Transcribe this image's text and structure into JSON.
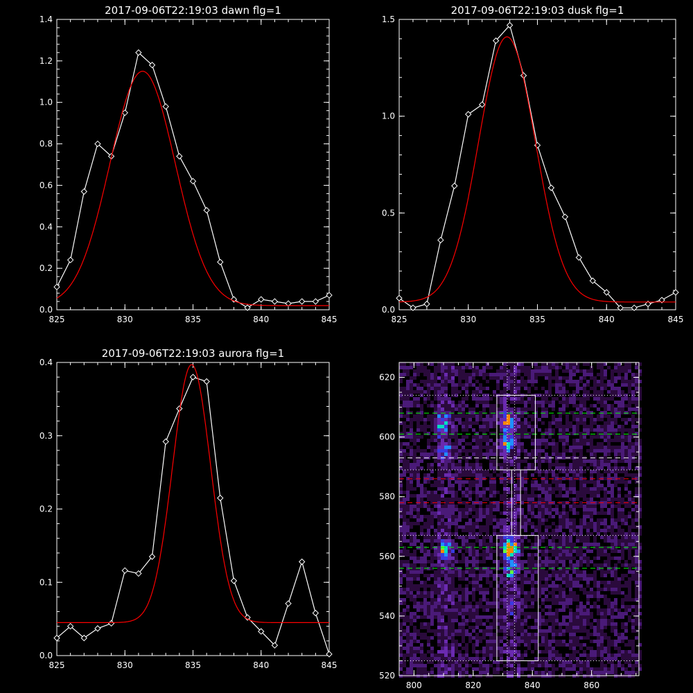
{
  "chart_data": [
    {
      "type": "line",
      "title": "2017-09-06T22:19:03 dawn flg=1",
      "xlim": [
        825,
        845
      ],
      "ylim": [
        0,
        1.4
      ],
      "xticks": [
        "825",
        "830",
        "835",
        "840",
        "845"
      ],
      "yticks": [
        "0.0",
        "0.2",
        "0.4",
        "0.6",
        "0.8",
        "1.0",
        "1.2",
        "1.4"
      ],
      "series": [
        {
          "color": "#ffffff",
          "marker": "diamond",
          "x": [
            825,
            826,
            827,
            828,
            829,
            830,
            831,
            832,
            833,
            834,
            835,
            836,
            837,
            838,
            839,
            840,
            841,
            842,
            843,
            844,
            845
          ],
          "y": [
            0.11,
            0.24,
            0.57,
            0.8,
            0.74,
            0.95,
            1.24,
            1.18,
            0.98,
            0.74,
            0.62,
            0.48,
            0.23,
            0.05,
            0.01,
            0.05,
            0.04,
            0.03,
            0.04,
            0.04,
            0.07
          ]
        },
        {
          "color": "#ff0000",
          "marker": "none",
          "fit": {
            "amplitude": 1.13,
            "center": 831.3,
            "sigma": 2.4,
            "offset": 0.02
          }
        }
      ]
    },
    {
      "type": "line",
      "title": "2017-09-06T22:19:03 dusk flg=1",
      "xlim": [
        825,
        845
      ],
      "ylim": [
        0,
        1.5
      ],
      "xticks": [
        "825",
        "830",
        "835",
        "840",
        "845"
      ],
      "yticks": [
        "0.0",
        "0.5",
        "1.0",
        "1.5"
      ],
      "series": [
        {
          "color": "#ffffff",
          "marker": "diamond",
          "x": [
            825,
            826,
            827,
            828,
            829,
            830,
            831,
            832,
            833,
            834,
            835,
            836,
            837,
            838,
            839,
            840,
            841,
            842,
            843,
            844,
            845
          ],
          "y": [
            0.06,
            0.01,
            0.03,
            0.36,
            0.64,
            1.01,
            1.06,
            1.39,
            1.47,
            1.21,
            0.85,
            0.63,
            0.48,
            0.27,
            0.15,
            0.09,
            0.01,
            0.01,
            0.03,
            0.05,
            0.09
          ]
        },
        {
          "color": "#ff0000",
          "marker": "none",
          "fit": {
            "amplitude": 1.37,
            "center": 832.8,
            "sigma": 2.05,
            "offset": 0.04
          }
        }
      ]
    },
    {
      "type": "line",
      "title": "2017-09-06T22:19:03 aurora flg=1",
      "xlim": [
        825,
        845
      ],
      "ylim": [
        0,
        0.4
      ],
      "xticks": [
        "825",
        "830",
        "835",
        "840",
        "845"
      ],
      "yticks": [
        "0.0",
        "0.1",
        "0.2",
        "0.3",
        "0.4"
      ],
      "series": [
        {
          "color": "#ffffff",
          "marker": "diamond",
          "x": [
            825,
            826,
            827,
            828,
            829,
            830,
            831,
            832,
            833,
            834,
            835,
            836,
            837,
            838,
            839,
            840,
            841,
            842,
            843,
            844,
            845
          ],
          "y": [
            0.024,
            0.04,
            0.024,
            0.037,
            0.044,
            0.116,
            0.112,
            0.135,
            0.292,
            0.337,
            0.38,
            0.374,
            0.215,
            0.102,
            0.052,
            0.033,
            0.014,
            0.071,
            0.128,
            0.058,
            0.002
          ]
        },
        {
          "color": "#ff0000",
          "marker": "none",
          "fit": {
            "amplitude": 0.352,
            "center": 834.9,
            "sigma": 1.4,
            "offset": 0.045
          }
        }
      ]
    },
    {
      "type": "heatmap",
      "title": "",
      "xlim": [
        795,
        876
      ],
      "ylim": [
        520,
        625
      ],
      "xticks": [
        "800",
        "820",
        "840",
        "860"
      ],
      "yticks": [
        "520",
        "540",
        "560",
        "580",
        "600",
        "620"
      ],
      "blobs": [
        {
          "x": 809,
          "y": 605,
          "intensity": 0.55
        },
        {
          "x": 810,
          "y": 596,
          "intensity": 0.35
        },
        {
          "x": 831,
          "y": 606,
          "intensity": 0.7
        },
        {
          "x": 831,
          "y": 598,
          "intensity": 0.5
        },
        {
          "x": 810,
          "y": 563,
          "intensity": 0.6
        },
        {
          "x": 832,
          "y": 563,
          "intensity": 1.0
        },
        {
          "x": 832,
          "y": 555,
          "intensity": 0.4
        },
        {
          "x": 832,
          "y": 545,
          "intensity": 0.25
        },
        {
          "x": 850,
          "y": 563,
          "intensity": 0.2
        }
      ],
      "boxes": [
        {
          "x": [
            828,
            841
          ],
          "y": [
            589,
            614
          ]
        },
        {
          "x": [
            833,
            836
          ],
          "y": [
            567,
            589
          ]
        },
        {
          "x": [
            828,
            842
          ],
          "y": [
            525,
            567
          ]
        }
      ],
      "hlines": [
        {
          "y": 614,
          "color": "#ffffff",
          "style": "dotted"
        },
        {
          "y": 608,
          "color": "#00ff00",
          "style": "dashed"
        },
        {
          "y": 601,
          "color": "#00ff00",
          "style": "dashed"
        },
        {
          "y": 593,
          "color": "#ffffff",
          "style": "dashed"
        },
        {
          "y": 589,
          "color": "#ffffff",
          "style": "dotted"
        },
        {
          "y": 586,
          "color": "#ff0000",
          "style": "dashed"
        },
        {
          "y": 578,
          "color": "#ff0000",
          "style": "dashed"
        },
        {
          "y": 567,
          "color": "#ffffff",
          "style": "dotted"
        },
        {
          "y": 563,
          "color": "#00ff00",
          "style": "dashed"
        },
        {
          "y": 556,
          "color": "#00ff00",
          "style": "dashed"
        },
        {
          "y": 525,
          "color": "#ffffff",
          "style": "dotted"
        }
      ],
      "vlines": [
        {
          "x": 831.5,
          "color": "#ffffff",
          "style": "dotted"
        },
        {
          "x": 834,
          "color": "#ffffff",
          "style": "dotted"
        }
      ]
    }
  ]
}
